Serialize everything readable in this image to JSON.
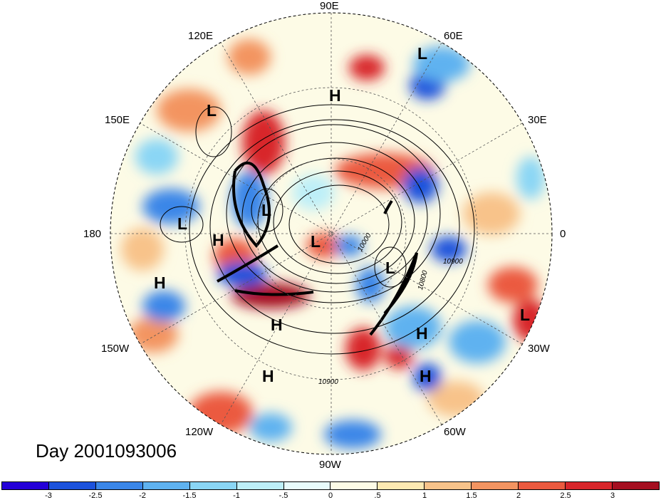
{
  "day_label": "Day 2001093006",
  "longitude_labels": [
    {
      "id": "90e",
      "text": "90E"
    },
    {
      "id": "60e",
      "text": "60E"
    },
    {
      "id": "30e",
      "text": "30E"
    },
    {
      "id": "0",
      "text": "0"
    },
    {
      "id": "30w",
      "text": "30W"
    },
    {
      "id": "60w",
      "text": "60W"
    },
    {
      "id": "90w",
      "text": "90W"
    },
    {
      "id": "120w",
      "text": "120W"
    },
    {
      "id": "150w",
      "text": "150W"
    },
    {
      "id": "180",
      "text": "180"
    },
    {
      "id": "150e",
      "text": "150E"
    },
    {
      "id": "120e",
      "text": "120E"
    }
  ],
  "pressure_centers": [
    {
      "id": "l1",
      "text": "L"
    },
    {
      "id": "h1",
      "text": "H"
    },
    {
      "id": "l2",
      "text": "L"
    },
    {
      "id": "l3",
      "text": "L"
    },
    {
      "id": "l4",
      "text": "L"
    },
    {
      "id": "h2",
      "text": "H"
    },
    {
      "id": "l5",
      "text": "L"
    },
    {
      "id": "l6",
      "text": "L"
    },
    {
      "id": "h3",
      "text": "H"
    },
    {
      "id": "h4",
      "text": "H"
    },
    {
      "id": "l7",
      "text": "L"
    },
    {
      "id": "h5",
      "text": "H"
    },
    {
      "id": "h6",
      "text": "H"
    },
    {
      "id": "h7",
      "text": "H"
    }
  ],
  "contour_labels": [
    {
      "id": "c1",
      "text": "10000"
    },
    {
      "id": "c2",
      "text": "10900"
    },
    {
      "id": "c3",
      "text": "10800"
    },
    {
      "id": "c4",
      "text": "10900"
    }
  ],
  "colorbar": {
    "colors": [
      "#2400d8",
      "#1c52dc",
      "#3a86e8",
      "#5fb2f0",
      "#8ad6f5",
      "#bdeff8",
      "#e8fbfb",
      "#fdfbe6",
      "#fde9b2",
      "#f8c38a",
      "#f39461",
      "#eb5a3f",
      "#d8262b",
      "#a50f20"
    ],
    "ticks": [
      "-3",
      "-2.5",
      "-2",
      "-1.5",
      "-1",
      "-.5",
      "0",
      ".5",
      "1",
      "1.5",
      "2",
      "2.5",
      "3"
    ]
  }
}
